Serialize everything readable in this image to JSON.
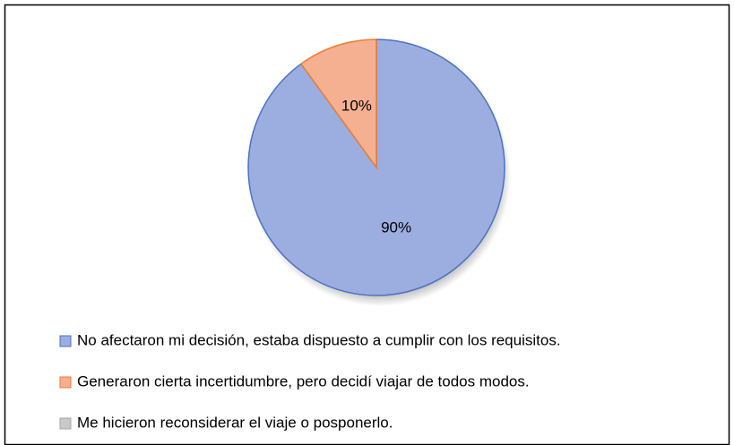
{
  "chart_data": {
    "type": "pie",
    "categories": [
      "No afectaron mi decisión, estaba dispuesto a cumplir con los requisitos.",
      "Generaron cierta incertidumbre, pero decidí viajar de todos modos.",
      "Me hicieron reconsiderar el viaje o posponerlo."
    ],
    "values": [
      90,
      10,
      0
    ],
    "value_labels": [
      "90%",
      "10%",
      null
    ],
    "colors": [
      "#9caee0",
      "#f5b092",
      "#c9c9c9"
    ],
    "edge_colors": [
      "#4a72c4",
      "#ed7d31",
      "#a5a5a5"
    ],
    "legend": "bottom"
  }
}
